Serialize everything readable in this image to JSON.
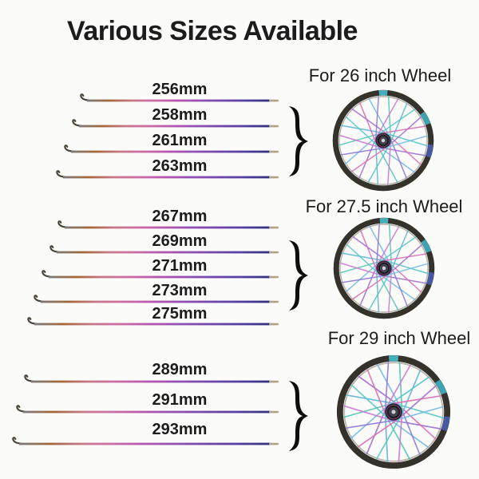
{
  "title": "Various Sizes Available",
  "sections": [
    {
      "heading": "For 26 inch Wheel",
      "spokes": [
        "256mm",
        "258mm",
        "261mm",
        "263mm"
      ]
    },
    {
      "heading": "For 27.5 inch Wheel",
      "spokes": [
        "267mm",
        "269mm",
        "271mm",
        "273mm",
        "275mm"
      ]
    },
    {
      "heading": "For 29 inch Wheel",
      "spokes": [
        "289mm",
        "291mm",
        "293mm"
      ]
    }
  ],
  "brace_glyph": "}",
  "colors": {
    "background": "#fbfbfa",
    "text": "#1c1c1c",
    "spoke_hook": "#4a4438",
    "spoke_tip": "#b0a282",
    "rim": "#35322b",
    "hub": "#1f1e24",
    "spoke_gradient": [
      "#7a7a7a",
      "#a4693a",
      "#c9798c",
      "#cd6aa6",
      "#b357ae",
      "#9150b4",
      "#7147ab",
      "#523fa0",
      "#32327f"
    ],
    "wheel_spoke_colors": [
      "#55c4c6",
      "#a06ed2",
      "#d96fb4",
      "#76b9e6",
      "#8f7ad8",
      "#52c6b2",
      "#c87ad2",
      "#5fb4d8"
    ]
  }
}
